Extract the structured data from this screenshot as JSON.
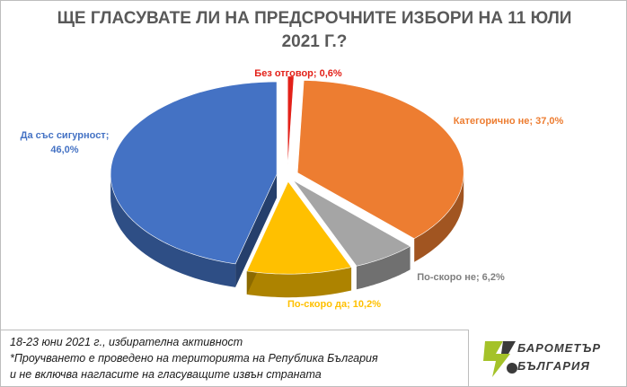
{
  "chart_data": {
    "type": "pie",
    "title_line1": "ЩЕ ГЛАСУВАТЕ ЛИ НА ПРЕДСРОЧНИТЕ ИЗБОРИ НА 11 ЮЛИ",
    "title_line2": "2021 Г.?",
    "slices": [
      {
        "label": "Без отговор; 0,6%",
        "value": 0.6,
        "color": "#e32119"
      },
      {
        "label": "Категорично не; 37,0%",
        "value": 37.0,
        "color": "#ed7d31"
      },
      {
        "label": "По-скоро не; 6,2%",
        "value": 6.2,
        "color": "#a5a5a5"
      },
      {
        "label": "По-скоро да; 10,2%",
        "value": 10.2,
        "color": "#ffc000"
      },
      {
        "label_line1": "Да със сигурност;",
        "label_line2": "46,0%",
        "value": 46.0,
        "color": "#4472c4"
      }
    ],
    "legend": "none",
    "style": "3d-exploded"
  },
  "footnote": {
    "line1": "18-23 юни 2021 г., избирателна активност",
    "line2": "*Проучването е проведено на територията на Република България",
    "line3": "и не включва нагласите на гласуващите извън страната"
  },
  "logo": {
    "line1": "БАРОМЕТЪР",
    "line2": "БЪЛГАРИЯ",
    "color": "#a4c229"
  }
}
